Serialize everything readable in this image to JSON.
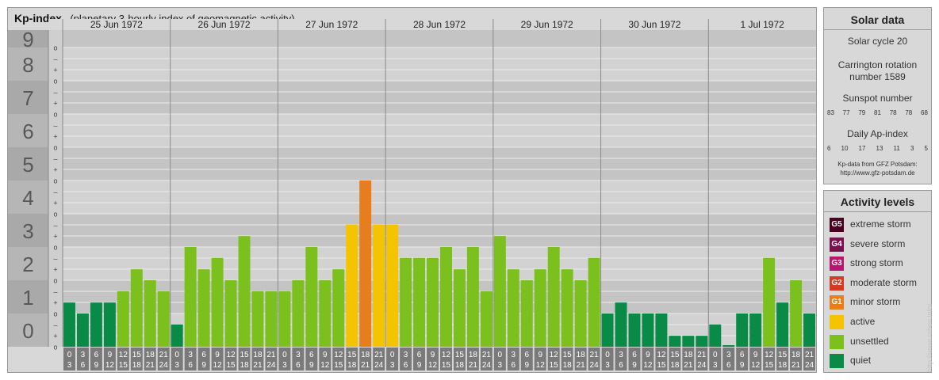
{
  "header": {
    "title": "Kp-index",
    "subtitle": "(planetary 3-hourly index of geomagnetic activity)"
  },
  "chart_data": {
    "type": "bar",
    "title": "Kp-index",
    "subtitle": "(planetary 3-hourly index of geomagnetic activity)",
    "ylim": [
      0,
      9.33
    ],
    "yticks": [
      "0",
      "1",
      "2",
      "3",
      "4",
      "5",
      "6",
      "7",
      "8",
      "9"
    ],
    "minor_ticks": [
      "o",
      "+",
      "–"
    ],
    "days": [
      "25 Jun 1972",
      "26 Jun 1972",
      "27 Jun 1972",
      "28 Jun 1972",
      "29 Jun 1972",
      "30 Jun 1972",
      "1 Jul 1972"
    ],
    "interval_start": [
      "0",
      "3",
      "6",
      "9",
      "12",
      "15",
      "18",
      "21"
    ],
    "interval_end": [
      "3",
      "6",
      "9",
      "12",
      "15",
      "18",
      "21",
      "24"
    ],
    "values": [
      [
        1.33,
        1.0,
        1.33,
        1.33,
        1.67,
        2.33,
        2.0,
        1.67
      ],
      [
        0.67,
        3.0,
        2.33,
        2.67,
        2.0,
        3.33,
        1.67,
        1.67
      ],
      [
        1.67,
        2.0,
        3.0,
        2.0,
        2.33,
        3.67,
        5.0,
        3.67
      ],
      [
        3.67,
        2.67,
        2.67,
        2.67,
        3.0,
        2.33,
        3.0,
        1.67
      ],
      [
        3.33,
        2.33,
        2.0,
        2.33,
        3.0,
        2.33,
        2.0,
        2.67
      ],
      [
        1.0,
        1.33,
        1.0,
        1.0,
        1.0,
        0.33,
        0.33,
        0.33
      ],
      [
        0.67,
        0.0,
        1.0,
        1.0,
        2.67,
        1.33,
        2.0,
        1.0
      ]
    ],
    "level_colors": {
      "quiet": "#0a8a47",
      "unsettled": "#7cc01e",
      "active": "#f5c400",
      "minor": "#e67e1e"
    },
    "grid": true
  },
  "solar": {
    "title": "Solar data",
    "cycle": "Solar cycle 20",
    "carrington_line1": "Carrington rotation",
    "carrington_line2": "number 1589",
    "sunspot_label": "Sunspot number",
    "sunspot_values": [
      "83",
      "77",
      "79",
      "81",
      "78",
      "78",
      "68"
    ],
    "ap_label": "Daily Ap-index",
    "ap_values": [
      "6",
      "10",
      "17",
      "13",
      "11",
      "3",
      "5"
    ],
    "source_line1": "Kp-data from GFZ Potsdam:",
    "source_line2": "http://www.gfz-potsdam.de"
  },
  "legend": {
    "title": "Activity levels",
    "items": [
      {
        "code": "G5",
        "label": "extreme storm",
        "color": "#4a0020"
      },
      {
        "code": "G4",
        "label": "severe storm",
        "color": "#7a1050"
      },
      {
        "code": "G3",
        "label": "strong storm",
        "color": "#b8156e"
      },
      {
        "code": "G2",
        "label": "moderate storm",
        "color": "#d63a20"
      },
      {
        "code": "G1",
        "label": "minor storm",
        "color": "#e67e1e"
      },
      {
        "code": "",
        "label": "active",
        "color": "#f5c400"
      },
      {
        "code": "",
        "label": "unsettled",
        "color": "#7cc01e"
      },
      {
        "code": "",
        "label": "quiet",
        "color": "#0a8a47"
      }
    ]
  },
  "watermark": "http://www.raben.info/"
}
